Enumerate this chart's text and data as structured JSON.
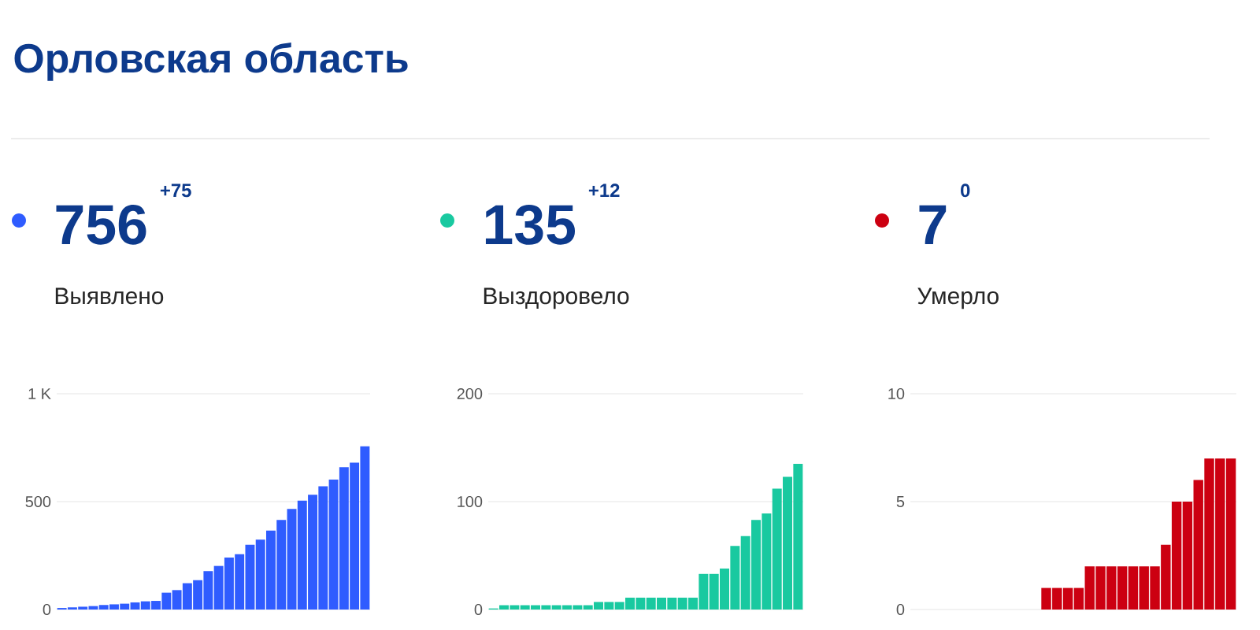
{
  "chart_data": [
    {
      "type": "bar",
      "title": "Выявлено",
      "annotations": [
        "756",
        "+75",
        "Орловская область"
      ],
      "color": "#2f5cff",
      "categories": [
        null,
        null,
        null,
        null,
        null,
        null,
        null,
        null,
        null,
        null,
        null,
        null,
        null,
        null,
        null,
        null,
        null,
        null,
        null,
        null,
        null,
        null,
        null,
        null,
        null,
        null,
        null,
        null,
        null,
        null
      ],
      "values": [
        7,
        10,
        13,
        16,
        21,
        24,
        27,
        33,
        38,
        40,
        78,
        90,
        122,
        136,
        178,
        202,
        241,
        256,
        300,
        324,
        366,
        415,
        466,
        505,
        532,
        571,
        602,
        660,
        681,
        756
      ],
      "ylim": [
        0,
        1000
      ],
      "yticks": [
        0,
        500,
        {
          "value": 1000,
          "label": "1 K"
        }
      ],
      "grid": "y",
      "tick_labels": "y"
    },
    {
      "type": "bar",
      "title": "Выздоровело",
      "annotations": [
        "135",
        "+12"
      ],
      "color": "#19c9a0",
      "categories": [
        null,
        null,
        null,
        null,
        null,
        null,
        null,
        null,
        null,
        null,
        null,
        null,
        null,
        null,
        null,
        null,
        null,
        null,
        null,
        null,
        null,
        null,
        null,
        null,
        null,
        null,
        null,
        null,
        null,
        null
      ],
      "values": [
        1,
        4,
        4,
        4,
        4,
        4,
        4,
        4,
        4,
        4,
        7,
        7,
        7,
        11,
        11,
        11,
        11,
        11,
        11,
        11,
        33,
        33,
        38,
        59,
        68,
        83,
        89,
        112,
        123,
        135
      ],
      "ylim": [
        0,
        200
      ],
      "yticks": [
        0,
        100,
        200
      ],
      "grid": "y",
      "tick_labels": "y"
    },
    {
      "type": "bar",
      "title": "Умерло",
      "annotations": [
        "7",
        "0"
      ],
      "color": "#cc0011",
      "categories": [
        null,
        null,
        null,
        null,
        null,
        null,
        null,
        null,
        null,
        null,
        null,
        null,
        null,
        null,
        null,
        null,
        null,
        null,
        null,
        null,
        null,
        null,
        null,
        null,
        null,
        null,
        null,
        null,
        null,
        null
      ],
      "values": [
        0,
        0,
        0,
        0,
        0,
        0,
        0,
        0,
        0,
        0,
        0,
        0,
        1,
        1,
        1,
        1,
        2,
        2,
        2,
        2,
        2,
        2,
        2,
        3,
        5,
        5,
        6,
        7,
        7,
        7
      ],
      "ylim": [
        0,
        10
      ],
      "yticks": [
        0,
        5,
        10
      ],
      "grid": "y",
      "tick_labels": "y"
    }
  ]
}
